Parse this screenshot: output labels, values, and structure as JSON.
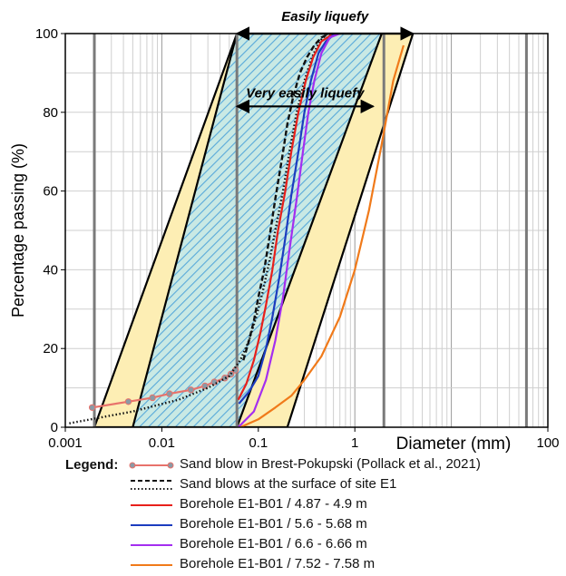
{
  "chart_data": {
    "type": "line",
    "title": "",
    "xlabel": "Diameter (mm)",
    "ylabel": "Percentage passing (%)",
    "xscale": "log",
    "xlim": [
      0.001,
      100
    ],
    "ylim": [
      0,
      100
    ],
    "xticks": [
      {
        "value": 0.001,
        "label": "0.001"
      },
      {
        "value": 0.01,
        "label": "0.01"
      },
      {
        "value": 0.1,
        "label": "0.1"
      },
      {
        "value": 1,
        "label": "1"
      },
      {
        "value": 100,
        "label": "100"
      }
    ],
    "yticks": [
      {
        "value": 0,
        "label": "0"
      },
      {
        "value": 20,
        "label": "20"
      },
      {
        "value": 40,
        "label": "40"
      },
      {
        "value": 60,
        "label": "60"
      },
      {
        "value": 80,
        "label": "80"
      },
      {
        "value": 100,
        "label": "100"
      }
    ],
    "grid": true,
    "zones": [
      {
        "label": "Easily liquefy",
        "fill": "#fdeeb4",
        "bottom": [
          0.002,
          0.2
        ],
        "top": [
          0.06,
          4.0
        ]
      },
      {
        "label": "Very easily liquefy",
        "fill": "#c9e9e4",
        "hatch": "#58a9da",
        "bottom": [
          0.005,
          0.06
        ],
        "top": [
          0.06,
          1.9
        ]
      }
    ],
    "annotations": [
      {
        "text": "Easily liquefy",
        "x_from": 0.06,
        "x_to": 4.0,
        "y": 100
      },
      {
        "text": "Very easily liquefy",
        "x_from": 0.06,
        "x_to": 1.55,
        "y": 81.5
      }
    ],
    "series": [
      {
        "name": "Sand blow in Brest-Pokupski (Pollack et al., 2021)",
        "color": "#e8726b",
        "style": "marker-line",
        "x": [
          0.0019,
          0.0045,
          0.008,
          0.012,
          0.02,
          0.028,
          0.035,
          0.045,
          0.052,
          0.058
        ],
        "y": [
          5,
          6.5,
          7.5,
          8.5,
          9.5,
          10.5,
          11.5,
          12.5,
          13.5,
          14.5
        ]
      },
      {
        "name": "Sand blows at the surface of site E1",
        "color": "#111111",
        "style": "dashed",
        "x": [
          0.07,
          0.08,
          0.09,
          0.1,
          0.115,
          0.13,
          0.15,
          0.175,
          0.2,
          0.23,
          0.27,
          0.32,
          0.38,
          0.45,
          0.55
        ],
        "y": [
          17,
          22,
          27,
          33,
          40,
          48,
          58,
          68,
          77,
          84,
          90,
          94,
          97,
          99,
          100
        ]
      },
      {
        "name": "Sand blows at the surface of site E1",
        "color": "#111111",
        "style": "dotted",
        "x": [
          0.0011,
          0.005,
          0.015,
          0.03,
          0.05,
          0.065,
          0.08,
          0.095,
          0.11,
          0.13,
          0.15,
          0.18,
          0.21,
          0.25,
          0.3,
          0.36,
          0.43,
          0.52
        ],
        "y": [
          1,
          4,
          7,
          10,
          13,
          17,
          22,
          28,
          34,
          42,
          50,
          60,
          70,
          80,
          88,
          94,
          98,
          100
        ]
      },
      {
        "name": "Borehole E1-B01 / 4.87 - 4.9 m",
        "color": "#e8201b",
        "style": "solid",
        "x": [
          0.062,
          0.075,
          0.09,
          0.105,
          0.12,
          0.14,
          0.16,
          0.19,
          0.22,
          0.26,
          0.31,
          0.37,
          0.45,
          0.6
        ],
        "y": [
          7,
          11,
          17,
          24,
          31,
          40,
          50,
          60,
          70,
          80,
          88,
          94,
          98,
          100
        ]
      },
      {
        "name": "Borehole E1-B01 / 5.6 - 5.68 m",
        "color": "#1c3cbf",
        "style": "solid",
        "x": [
          0.063,
          0.08,
          0.1,
          0.12,
          0.14,
          0.165,
          0.19,
          0.22,
          0.26,
          0.3,
          0.35,
          0.42,
          0.5,
          0.62
        ],
        "y": [
          6,
          9,
          13,
          20,
          28,
          38,
          48,
          59,
          70,
          80,
          88,
          95,
          98,
          100
        ]
      },
      {
        "name": "Borehole E1-B01 / 6.6 - 6.66 m",
        "color": "#a42ef0",
        "style": "solid",
        "x": [
          0.062,
          0.09,
          0.12,
          0.15,
          0.18,
          0.21,
          0.25,
          0.29,
          0.33,
          0.38,
          0.45,
          0.55,
          0.7
        ],
        "y": [
          0,
          4,
          12,
          22,
          33,
          45,
          58,
          70,
          80,
          88,
          95,
          99,
          100
        ]
      },
      {
        "name": "Borehole E1-B01 / 7.52 - 7.58 m",
        "color": "#f07a1a",
        "style": "solid",
        "x": [
          0.065,
          0.1,
          0.15,
          0.22,
          0.3,
          0.45,
          0.7,
          1.0,
          1.4,
          1.9,
          2.5,
          3.2
        ],
        "y": [
          0,
          2,
          5,
          8,
          12,
          18,
          28,
          40,
          55,
          72,
          88,
          97
        ]
      }
    ]
  },
  "legend": {
    "title": "Legend:",
    "items": [
      {
        "label": "Sand blow in Brest-Pokupski (Pollack et al., 2021)"
      },
      {
        "label": "Sand blows at the surface of site E1"
      },
      {
        "label": "Borehole E1-B01 / 4.87 - 4.9 m"
      },
      {
        "label": "Borehole E1-B01 / 5.6 - 5.68 m"
      },
      {
        "label": "Borehole E1-B01 / 6.6 - 6.66 m"
      },
      {
        "label": "Borehole E1-B01 / 7.52 - 7.58 m"
      }
    ]
  }
}
